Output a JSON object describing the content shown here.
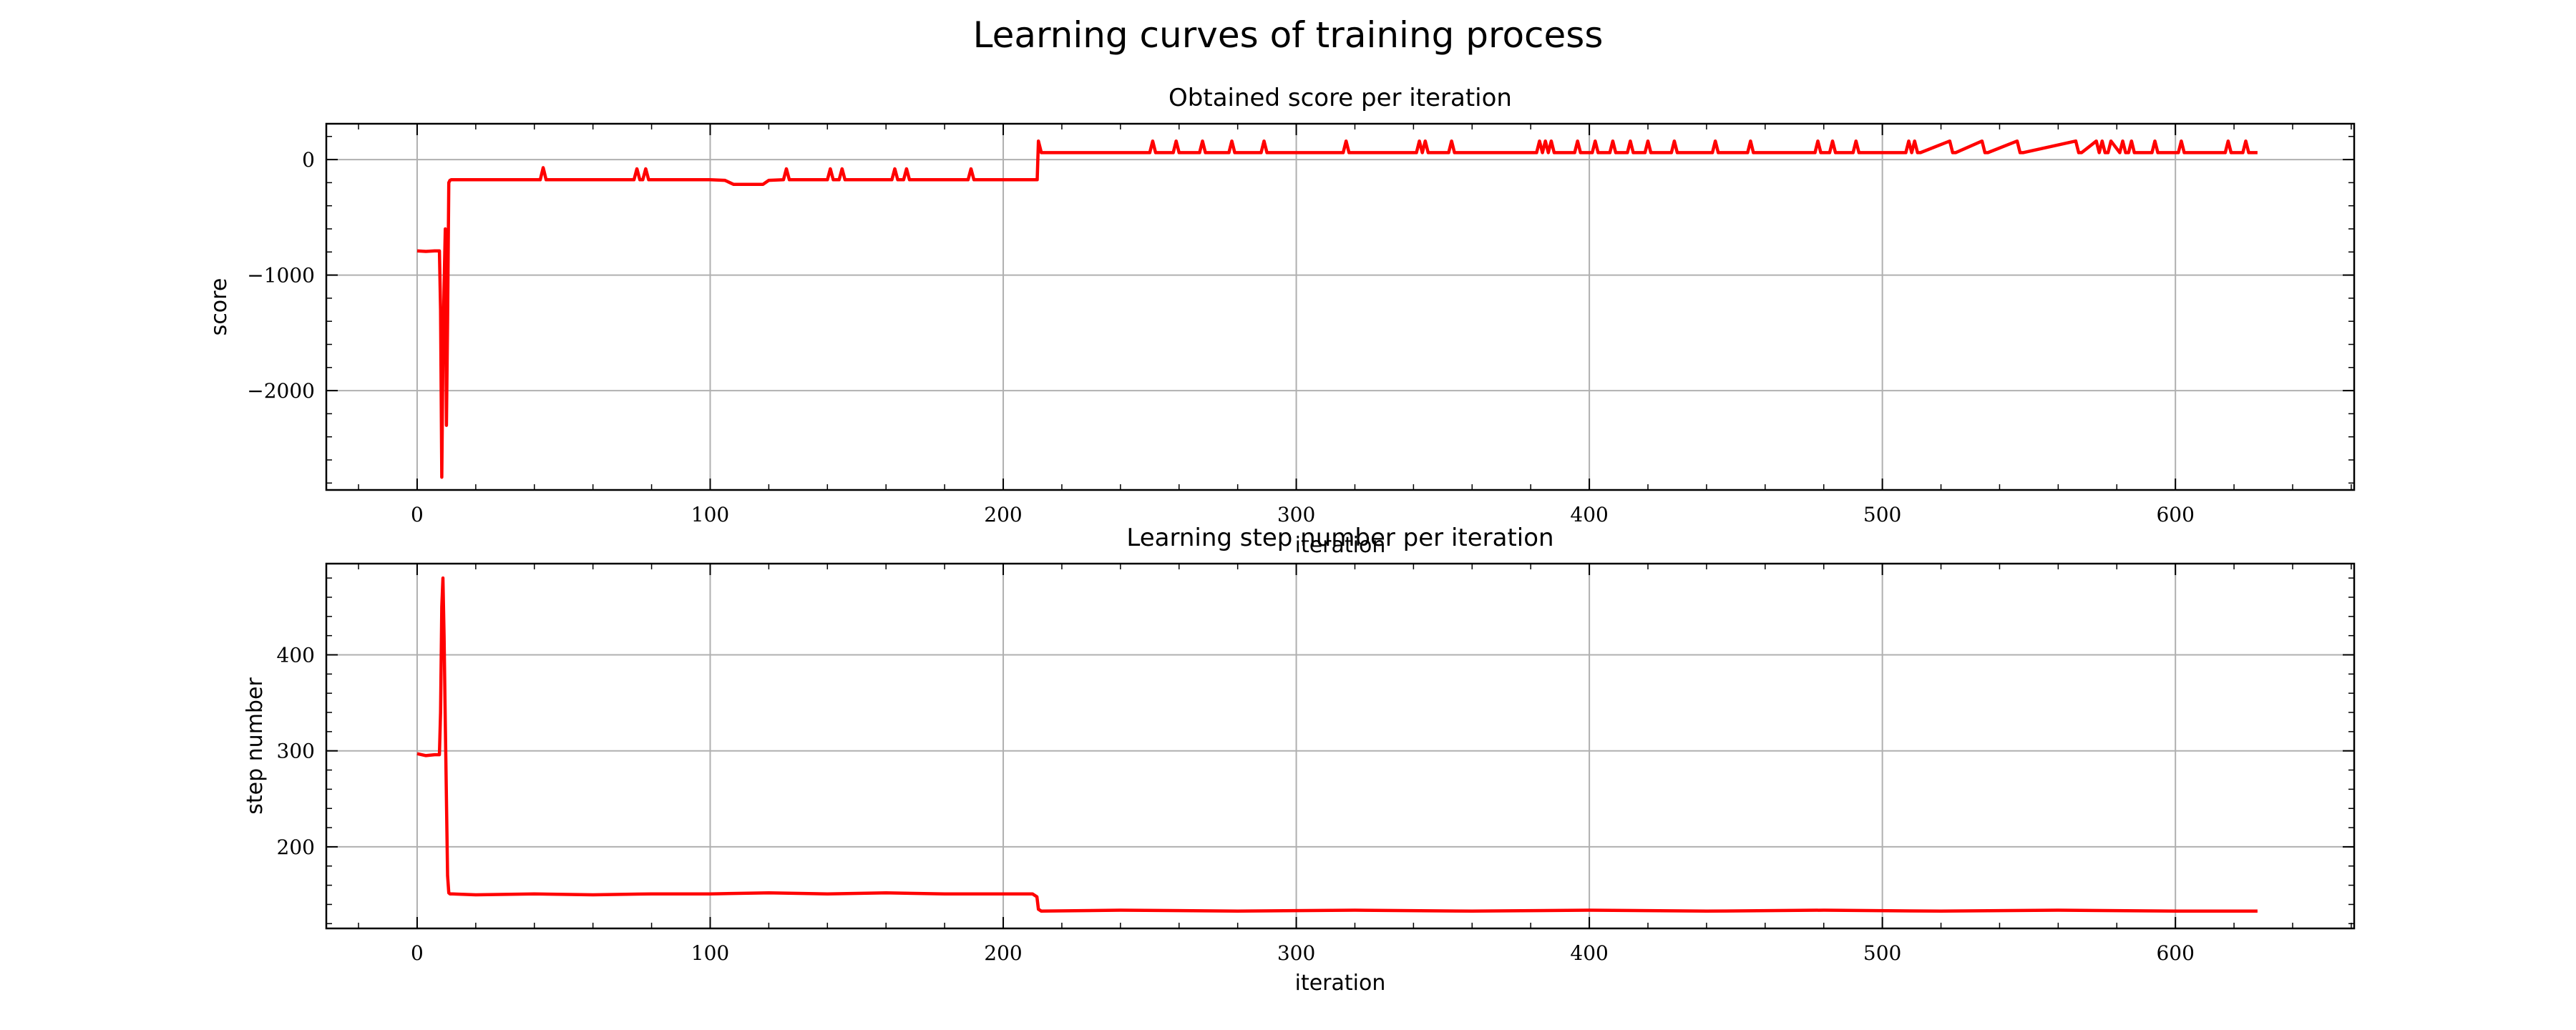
{
  "figure": {
    "title": "Learning curves of training process"
  },
  "chart_data": [
    {
      "type": "line",
      "title": "Obtained score per iteration",
      "xlabel": "iteration",
      "ylabel": "score",
      "xlim": [
        -31,
        661
      ],
      "ylim": [
        -2860,
        310
      ],
      "xticks": [
        0,
        100,
        200,
        300,
        400,
        500,
        600
      ],
      "yticks": [
        0,
        -1000,
        -2000
      ],
      "ytick_labels": [
        "0",
        "−1000",
        "−2000"
      ],
      "grid": true,
      "color": "#ff0000",
      "series": [
        {
          "x": [
            0,
            3,
            6,
            7.6,
            8,
            8.4,
            8.8,
            9.2,
            9.6,
            10,
            10.4,
            10.8,
            11.2,
            11.6,
            12,
            13,
            20,
            42,
            43,
            44,
            74,
            75,
            76,
            77,
            78,
            79,
            100,
            105,
            108,
            118,
            120,
            125,
            126,
            127,
            140,
            141,
            142,
            144,
            145,
            146,
            162,
            163,
            164,
            166,
            167,
            168,
            188,
            189,
            190,
            211.6,
            212,
            213,
            250,
            251,
            252,
            258,
            259,
            260,
            267,
            268,
            269,
            277,
            278,
            279,
            288,
            289,
            290,
            316,
            317,
            318,
            341,
            342,
            343,
            344,
            345,
            352,
            353,
            354,
            382,
            383,
            384,
            385,
            386,
            387,
            388,
            395,
            396,
            397,
            401,
            402,
            403,
            407,
            408,
            409,
            413,
            414,
            415,
            419,
            420,
            421,
            428,
            429,
            430,
            442,
            443,
            444,
            454,
            455,
            456,
            477,
            478,
            479,
            482,
            483,
            484,
            490,
            491,
            492,
            508,
            509,
            510,
            511,
            512,
            513,
            523,
            524,
            525,
            534,
            535,
            536,
            546,
            547,
            548,
            566,
            567,
            568,
            573,
            574,
            575,
            576,
            577,
            578,
            581,
            582,
            583,
            584,
            585,
            586,
            592,
            593,
            594,
            601,
            602,
            603,
            617,
            618,
            619,
            623,
            624,
            625,
            628
          ],
          "y": [
            -790,
            -795,
            -790,
            -790,
            -1300,
            -2750,
            -1700,
            -1100,
            -600,
            -2300,
            -1400,
            -200,
            -180,
            -175,
            -175,
            -175,
            -175,
            -175,
            -70,
            -175,
            -175,
            -80,
            -175,
            -175,
            -80,
            -175,
            -175,
            -180,
            -215,
            -215,
            -180,
            -175,
            -80,
            -175,
            -175,
            -80,
            -175,
            -175,
            -80,
            -175,
            -175,
            -80,
            -175,
            -175,
            -80,
            -175,
            -175,
            -80,
            -175,
            -175,
            160,
            60,
            60,
            160,
            60,
            60,
            160,
            60,
            60,
            160,
            60,
            60,
            160,
            60,
            60,
            160,
            60,
            60,
            160,
            60,
            60,
            160,
            60,
            160,
            60,
            60,
            160,
            60,
            60,
            160,
            60,
            160,
            60,
            160,
            60,
            60,
            160,
            60,
            60,
            160,
            60,
            60,
            160,
            60,
            60,
            160,
            60,
            60,
            160,
            60,
            60,
            160,
            60,
            60,
            160,
            60,
            60,
            160,
            60,
            60,
            160,
            60,
            60,
            160,
            60,
            60,
            160,
            60,
            60,
            160,
            60,
            160,
            60,
            60,
            160,
            60,
            60,
            160,
            60,
            60,
            160,
            60,
            60,
            160,
            60,
            60,
            160,
            60,
            160,
            60,
            60,
            160,
            60,
            160,
            60,
            60,
            160,
            60,
            60,
            160,
            60,
            60,
            160,
            60,
            60,
            160,
            60,
            60,
            160,
            60,
            60
          ]
        }
      ]
    },
    {
      "type": "line",
      "title": "Learning step number per iteration",
      "xlabel": "iteration",
      "ylabel": "step number",
      "xlim": [
        -31,
        661
      ],
      "ylim": [
        115,
        495
      ],
      "xticks": [
        0,
        100,
        200,
        300,
        400,
        500,
        600
      ],
      "yticks": [
        200,
        300,
        400
      ],
      "grid": true,
      "color": "#ff0000",
      "series": [
        {
          "x": [
            0,
            3,
            6,
            7.6,
            8,
            8.4,
            8.8,
            9.2,
            9.6,
            10,
            10.4,
            10.8,
            11.2,
            12,
            20,
            40,
            60,
            80,
            100,
            120,
            140,
            160,
            180,
            200,
            210,
            211.5,
            212,
            213,
            240,
            280,
            320,
            360,
            400,
            440,
            480,
            520,
            560,
            600,
            628
          ],
          "y": [
            297,
            295,
            296,
            296,
            340,
            450,
            480,
            420,
            330,
            250,
            170,
            152,
            151,
            151,
            150,
            151,
            150,
            151,
            151,
            152,
            151,
            152,
            151,
            151,
            151,
            148,
            135,
            133,
            134,
            133,
            134,
            133,
            134,
            133,
            134,
            133,
            134,
            133,
            133
          ]
        }
      ]
    }
  ]
}
